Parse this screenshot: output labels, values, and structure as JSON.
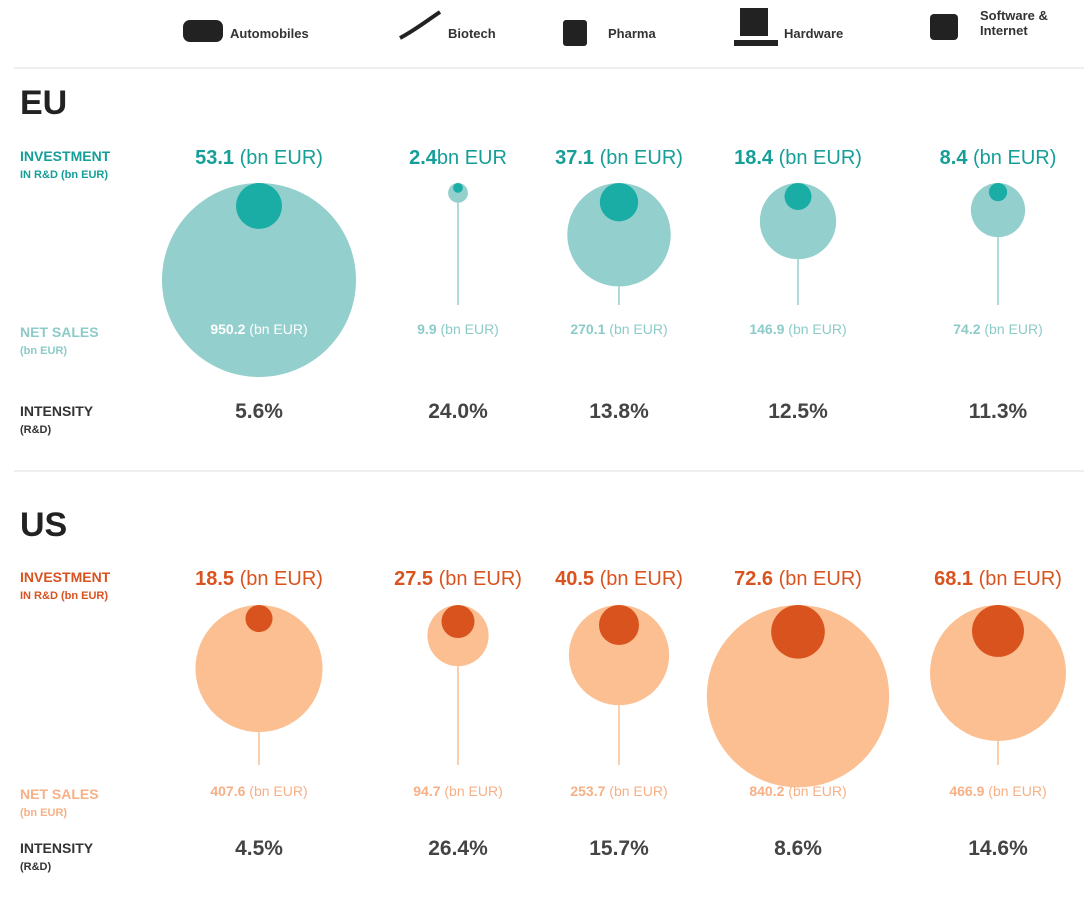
{
  "categories": [
    "Automobiles",
    "Biotech",
    "Pharma",
    "Hardware",
    "Software & Internet"
  ],
  "chart_data": [
    {
      "type": "bubble",
      "title": "EU",
      "labels": {
        "investment": [
          "INVESTMENT",
          "IN R&D (bn EUR)"
        ],
        "net_sales": [
          "NET SALES",
          "(bn EUR)"
        ],
        "intensity": [
          "INTENSITY",
          "(R&D)"
        ]
      },
      "investment": {
        "color": "#1aada6",
        "text_color": "#169e98",
        "values": [
          53.1,
          2.4,
          37.1,
          18.4,
          8.4
        ],
        "value_labels": [
          "53.1 (bn EUR)",
          "2.4bn EUR",
          "37.1 (bn EUR)",
          "18.4 (bn EUR)",
          "8.4 (bn EUR)"
        ]
      },
      "net_sales": {
        "color": "#93cfcc",
        "text_color": "#8ccbc8",
        "values": [
          950.2,
          9.9,
          270.1,
          146.9,
          74.2
        ],
        "value_labels": [
          "950.2 (bn EUR)",
          "9.9 (bn EUR)",
          "270.1 (bn EUR)",
          "146.9 (bn EUR)",
          "74.2 (bn EUR)"
        ]
      },
      "intensity": {
        "values": [
          5.6,
          24.0,
          13.8,
          12.5,
          11.3
        ],
        "value_labels": [
          "5.6%",
          "24.0%",
          "13.8%",
          "12.5%",
          "11.3%"
        ]
      }
    },
    {
      "type": "bubble",
      "title": "US",
      "labels": {
        "investment": [
          "INVESTMENT",
          "IN R&D (bn EUR)"
        ],
        "net_sales": [
          "NET SALES",
          "(bn EUR)"
        ],
        "intensity": [
          "INTENSITY",
          "(R&D)"
        ]
      },
      "investment": {
        "color": "#d9531f",
        "text_color": "#d9531f",
        "values": [
          18.5,
          27.5,
          40.5,
          72.6,
          68.1
        ],
        "value_labels": [
          "18.5 (bn EUR)",
          "27.5 (bn EUR)",
          "40.5 (bn EUR)",
          "72.6 (bn EUR)",
          "68.1 (bn EUR)"
        ]
      },
      "net_sales": {
        "color": "#fbbf91",
        "text_color": "#f7b086",
        "values": [
          407.6,
          94.7,
          253.7,
          840.2,
          466.9
        ],
        "value_labels": [
          "407.6 (bn EUR)",
          "94.7 (bn EUR)",
          "253.7 (bn EUR)",
          "840.2 (bn EUR)",
          "466.9 (bn EUR)"
        ]
      },
      "intensity": {
        "values": [
          4.5,
          26.4,
          15.7,
          8.6,
          14.6
        ],
        "value_labels": [
          "4.5%",
          "26.4%",
          "15.7%",
          "8.6%",
          "14.6%"
        ]
      }
    }
  ]
}
